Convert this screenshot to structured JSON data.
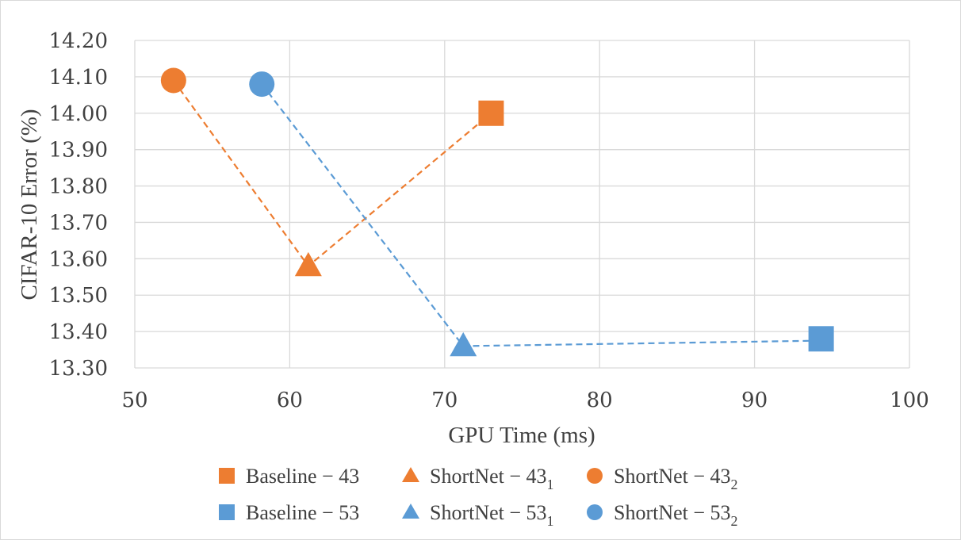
{
  "chart_data": {
    "type": "scatter",
    "xlabel": "GPU Time (ms)",
    "ylabel": "CIFAR-10 Error (%)",
    "xlim": [
      50,
      100
    ],
    "ylim": [
      13.3,
      14.2
    ],
    "x_ticks": [
      "50",
      "60",
      "70",
      "80",
      "90",
      "100"
    ],
    "y_ticks": [
      "13.30",
      "13.40",
      "13.50",
      "13.60",
      "13.70",
      "13.80",
      "13.90",
      "14.00",
      "14.10",
      "14.20"
    ],
    "grid": true,
    "legend_position": "bottom",
    "series": [
      {
        "name": "Baseline − 43",
        "base": "Baseline − 43",
        "sub": "",
        "marker": "square",
        "color": "#ED7D31",
        "x": 73.0,
        "y": 14.0
      },
      {
        "name": "ShortNet − 43₁",
        "base": "ShortNet − 43",
        "sub": "1",
        "marker": "triangle",
        "color": "#ED7D31",
        "x": 61.2,
        "y": 13.58
      },
      {
        "name": "ShortNet − 43₂",
        "base": "ShortNet − 43",
        "sub": "2",
        "marker": "circle",
        "color": "#ED7D31",
        "x": 52.5,
        "y": 14.09
      },
      {
        "name": "Baseline − 53",
        "base": "Baseline − 53",
        "sub": "",
        "marker": "square",
        "color": "#5B9BD5",
        "x": 94.3,
        "y": 13.38
      },
      {
        "name": "ShortNet − 53₁",
        "base": "ShortNet − 53",
        "sub": "1",
        "marker": "triangle",
        "color": "#5B9BD5",
        "x": 71.2,
        "y": 13.36
      },
      {
        "name": "ShortNet − 53₂",
        "base": "ShortNet − 53",
        "sub": "2",
        "marker": "circle",
        "color": "#5B9BD5",
        "x": 58.2,
        "y": 14.08
      }
    ],
    "connectors": [
      {
        "color": "#ED7D31",
        "points": [
          [
            52.5,
            14.09
          ],
          [
            61.2,
            13.58
          ],
          [
            73.0,
            14.0
          ]
        ]
      },
      {
        "color": "#5B9BD5",
        "points": [
          [
            58.2,
            14.08
          ],
          [
            71.2,
            13.36
          ],
          [
            94.3,
            13.375
          ]
        ]
      }
    ]
  }
}
